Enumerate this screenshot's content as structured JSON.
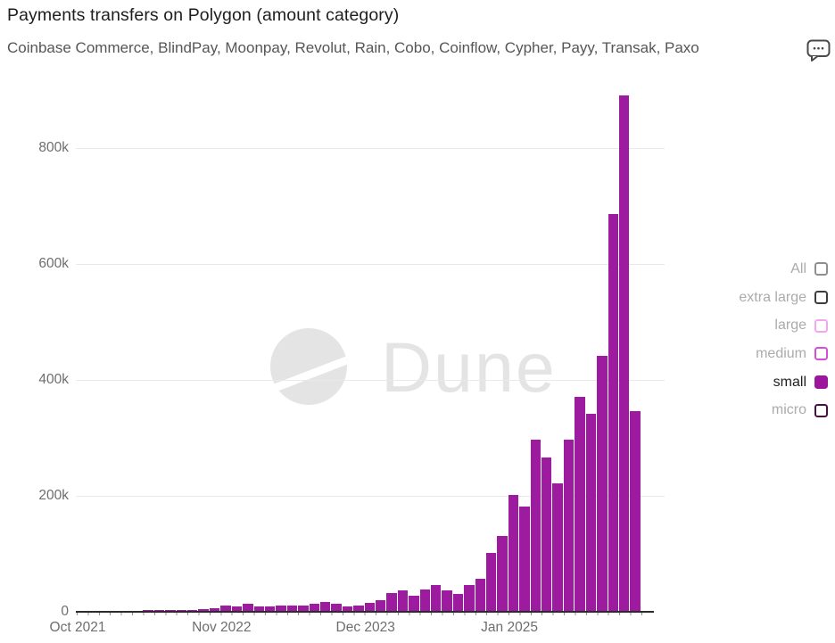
{
  "header": {
    "title": "Payments transfers on Polygon (amount category)",
    "subtitle": "Coinbase Commerce, BlindPay, Moonpay, Revolut, Rain, Cobo, Coinflow, Cypher, Payy, Transak, Paxo",
    "comment_icon": "speech-bubble-ellipsis",
    "comment_icon_color": "#4a4a4a"
  },
  "watermark": {
    "text": "Dune",
    "color": "#e4e4e4"
  },
  "legend": {
    "position": "right",
    "items": [
      {
        "label": "All",
        "color": "#8f8f8f",
        "filled": false,
        "active": false
      },
      {
        "label": "extra large",
        "color": "#3d3d3d",
        "filled": false,
        "active": false
      },
      {
        "label": "large",
        "color": "#f0a6f0",
        "filled": false,
        "active": false
      },
      {
        "label": "medium",
        "color": "#d54fd5",
        "filled": false,
        "active": false
      },
      {
        "label": "small",
        "color": "#9c169c",
        "filled": true,
        "active": true
      },
      {
        "label": "micro",
        "color": "#471043",
        "filled": false,
        "active": false
      }
    ]
  },
  "chart_data": {
    "type": "bar",
    "title": "Payments transfers on Polygon (amount category)",
    "series_name": "small",
    "bar_color": "#9c1b9e",
    "grid": "horizontal",
    "ylim": [
      0,
      916000
    ],
    "y_axis": [
      {
        "label": "0",
        "value": 0
      },
      {
        "label": "200k",
        "value": 200000
      },
      {
        "label": "400k",
        "value": 400000
      },
      {
        "label": "600k",
        "value": 600000
      },
      {
        "label": "800k",
        "value": 800000
      }
    ],
    "x_ticks": [
      {
        "label": "Oct 2021",
        "index": 0
      },
      {
        "label": "Nov 2022",
        "index": 13
      },
      {
        "label": "Dec 2023",
        "index": 26
      },
      {
        "label": "Jan 2025",
        "index": 39
      }
    ],
    "x": [
      "2021-10",
      "2021-11",
      "2021-12",
      "2022-01",
      "2022-02",
      "2022-03",
      "2022-04",
      "2022-05",
      "2022-06",
      "2022-07",
      "2022-08",
      "2022-09",
      "2022-10",
      "2022-11",
      "2022-12",
      "2023-01",
      "2023-02",
      "2023-03",
      "2023-04",
      "2023-05",
      "2023-06",
      "2023-07",
      "2023-08",
      "2023-09",
      "2023-10",
      "2023-11",
      "2023-12",
      "2024-01",
      "2024-02",
      "2024-03",
      "2024-04",
      "2024-05",
      "2024-06",
      "2024-07",
      "2024-08",
      "2024-09",
      "2024-10",
      "2024-11",
      "2024-12",
      "2025-01",
      "2025-02",
      "2025-03",
      "2025-04",
      "2025-05",
      "2025-06",
      "2025-07",
      "2025-08",
      "2025-09",
      "2025-10",
      "2025-11",
      "2025-12"
    ],
    "values": [
      200,
      300,
      300,
      400,
      400,
      500,
      800,
      1500,
      1800,
      2000,
      2200,
      2500,
      4000,
      9000,
      8000,
      13000,
      7000,
      8000,
      9000,
      10000,
      10000,
      13000,
      15000,
      13000,
      8000,
      10000,
      14000,
      19000,
      31000,
      36000,
      26000,
      37000,
      45000,
      35000,
      30000,
      44000,
      55000,
      100000,
      130000,
      200000,
      180000,
      295000,
      265000,
      220000,
      295000,
      370000,
      340000,
      440000,
      685000,
      890000,
      345000
    ]
  }
}
